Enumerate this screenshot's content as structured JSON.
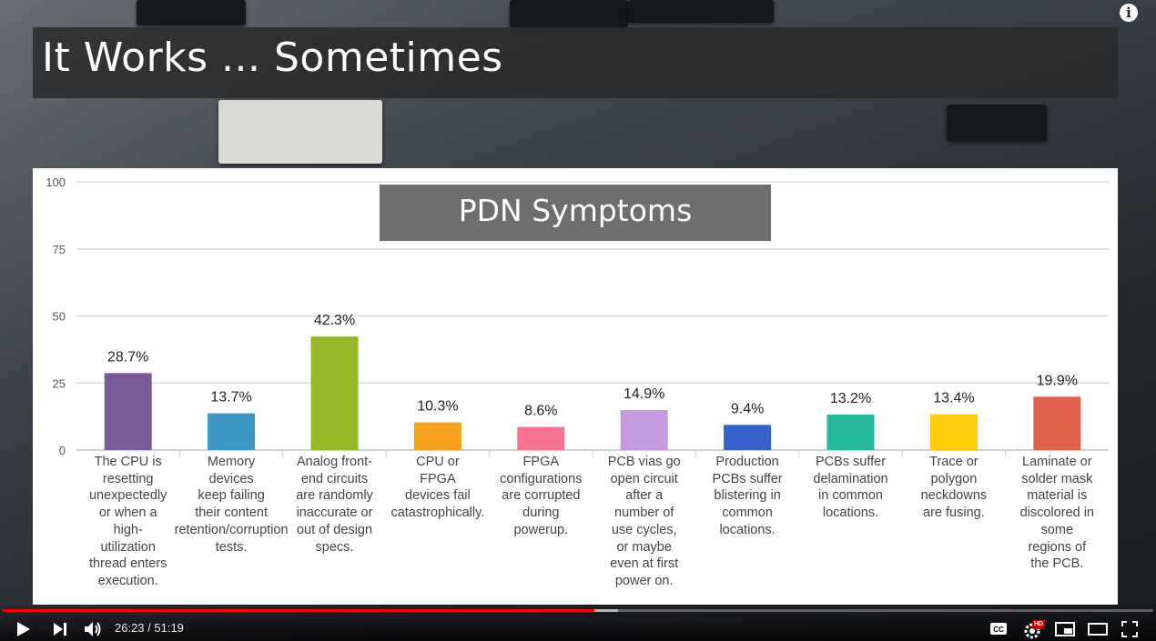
{
  "slide": {
    "title": "It Works ... Sometimes"
  },
  "chart_data": {
    "type": "bar",
    "title": "PDN Symptoms",
    "ylim": [
      0,
      100
    ],
    "yticks": [
      0,
      25,
      50,
      75,
      100
    ],
    "grid": true,
    "categories": [
      "The CPU is resetting unexpectedly or when a high-utilization thread enters execution.",
      "Memory devices keep failing their content retention/corruption tests.",
      "Analog front-end circuits are randomly inaccurate or out of design specs.",
      "CPU or FPGA devices fail catastrophically.",
      "FPGA configurations are corrupted during powerup.",
      "PCB vias go open circuit after a number of use cycles, or maybe even at first power on.",
      "Production PCBs suffer blistering in common locations.",
      "PCBs suffer delamination in common locations.",
      "Trace or polygon neckdowns are fusing.",
      "Laminate or solder mask material is discolored in some regions of the PCB."
    ],
    "category_lines": [
      [
        "The CPU is",
        "resetting",
        "unexpectedly",
        "or when a",
        "high-",
        "utilization",
        "thread enters",
        "execution."
      ],
      [
        "Memory",
        "devices",
        "keep failing",
        "their content",
        "retention/corruption",
        "tests."
      ],
      [
        "Analog front-",
        "end circuits",
        "are randomly",
        "inaccurate or",
        "out of design",
        "specs."
      ],
      [
        "CPU or",
        "FPGA",
        "devices fail",
        "catastrophically."
      ],
      [
        "FPGA",
        "configurations",
        "are corrupted",
        "during",
        "powerup."
      ],
      [
        "PCB vias go",
        "open circuit",
        "after a",
        "number of",
        "use cycles,",
        "or maybe",
        "even at first",
        "power on."
      ],
      [
        "Production",
        "PCBs suffer",
        "blistering in",
        "common",
        "locations."
      ],
      [
        "PCBs suffer",
        "delamination",
        "in common",
        "locations."
      ],
      [
        "Trace or",
        "polygon",
        "neckdowns",
        "are fusing."
      ],
      [
        "Laminate or",
        "solder mask",
        "material is",
        "discolored in",
        "some",
        "regions of",
        "the PCB."
      ]
    ],
    "values": [
      28.7,
      13.7,
      42.3,
      10.3,
      8.6,
      14.9,
      9.4,
      13.2,
      13.4,
      19.9
    ],
    "value_labels": [
      "28.7%",
      "13.7%",
      "42.3%",
      "10.3%",
      "8.6%",
      "14.9%",
      "9.4%",
      "13.2%",
      "13.4%",
      "19.9%"
    ],
    "colors": [
      "#7b5a9a",
      "#3b97c4",
      "#94b824",
      "#f5a11c",
      "#f47391",
      "#c59ae0",
      "#3563c9",
      "#25b99b",
      "#fbcc07",
      "#e1604a"
    ]
  },
  "player": {
    "time_current": "26:23",
    "time_total": "51:19",
    "time_display": "26:23 / 51:19",
    "progress_fraction": 0.514,
    "buffered_fraction": 0.535,
    "hd_badge": "HD",
    "cc_label": "CC",
    "icons": [
      "play-icon",
      "next-icon",
      "volume-icon",
      "captions-icon",
      "settings-icon",
      "miniplayer-icon",
      "theater-icon",
      "fullscreen-icon",
      "info-icon"
    ]
  }
}
